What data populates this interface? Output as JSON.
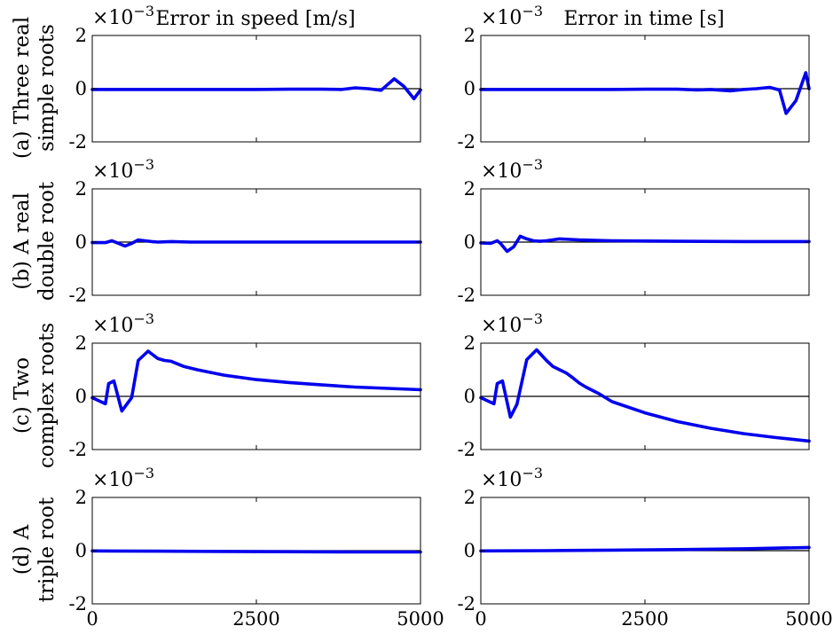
{
  "chart_data": {
    "type": "line",
    "column_titles": [
      "Error in speed [m/s]",
      "Error in time [s]"
    ],
    "row_labels": [
      [
        "(a) Three real",
        "simple roots"
      ],
      [
        "(b) A real",
        "double root"
      ],
      [
        "(c) Two",
        "complex roots"
      ],
      [
        "(d) A",
        "triple root"
      ]
    ],
    "y_multiplier": "×10",
    "y_exponent": "−3",
    "xlim": [
      0,
      5000
    ],
    "ylim": [
      -2,
      2
    ],
    "x_ticks": [
      "0",
      "2500",
      "5000"
    ],
    "y_ticks": [
      "2",
      "0",
      "-2"
    ],
    "panels": [
      {
        "row": 0,
        "col": 0,
        "x": [
          0,
          500,
          1000,
          1500,
          2000,
          2500,
          3000,
          3500,
          3800,
          4000,
          4200,
          4400,
          4600,
          4750,
          4900,
          5000
        ],
        "y": [
          -0.03,
          -0.03,
          -0.03,
          -0.03,
          -0.03,
          -0.03,
          -0.02,
          -0.02,
          -0.03,
          0.03,
          0.0,
          -0.06,
          0.37,
          0.08,
          -0.38,
          -0.05
        ]
      },
      {
        "row": 0,
        "col": 1,
        "x": [
          0,
          500,
          1000,
          1500,
          2000,
          2500,
          3000,
          3300,
          3500,
          3800,
          4000,
          4200,
          4400,
          4550,
          4650,
          4800,
          4950,
          5000
        ],
        "y": [
          -0.03,
          -0.03,
          -0.03,
          -0.03,
          -0.03,
          -0.02,
          -0.02,
          -0.05,
          -0.03,
          -0.08,
          -0.03,
          0.0,
          0.05,
          -0.05,
          -0.93,
          -0.45,
          0.6,
          0.0
        ]
      },
      {
        "row": 1,
        "col": 0,
        "x": [
          0,
          200,
          300,
          400,
          500,
          600,
          700,
          900,
          1000,
          1200,
          1500,
          2000,
          2500,
          3000,
          4000,
          5000
        ],
        "y": [
          -0.02,
          -0.02,
          0.05,
          -0.05,
          -0.15,
          -0.05,
          0.08,
          0.02,
          0.0,
          0.02,
          0.0,
          0.0,
          0.0,
          0.0,
          0.0,
          0.0
        ]
      },
      {
        "row": 1,
        "col": 1,
        "x": [
          0,
          150,
          250,
          300,
          400,
          500,
          600,
          700,
          800,
          900,
          1000,
          1200,
          1500,
          1800,
          2000,
          2500,
          3000,
          4000,
          5000
        ],
        "y": [
          -0.03,
          -0.05,
          0.05,
          -0.05,
          -0.35,
          -0.18,
          0.22,
          0.12,
          0.05,
          0.03,
          0.05,
          0.12,
          0.08,
          0.06,
          0.05,
          0.04,
          0.03,
          0.02,
          0.02
        ]
      },
      {
        "row": 2,
        "col": 0,
        "x": [
          0,
          200,
          250,
          330,
          450,
          600,
          700,
          850,
          1000,
          1100,
          1200,
          1400,
          1600,
          1800,
          2000,
          2500,
          3000,
          3500,
          4000,
          4500,
          5000
        ],
        "y": [
          -0.05,
          -0.28,
          0.48,
          0.58,
          -0.55,
          -0.05,
          1.35,
          1.7,
          1.42,
          1.35,
          1.32,
          1.12,
          1.0,
          0.9,
          0.8,
          0.63,
          0.52,
          0.43,
          0.35,
          0.3,
          0.25
        ]
      },
      {
        "row": 2,
        "col": 1,
        "x": [
          0,
          200,
          250,
          330,
          450,
          550,
          700,
          850,
          1000,
          1100,
          1200,
          1300,
          1400,
          1500,
          1600,
          1800,
          2000,
          2500,
          3000,
          3500,
          4000,
          4500,
          5000
        ],
        "y": [
          -0.05,
          -0.28,
          0.48,
          0.58,
          -0.78,
          -0.3,
          1.38,
          1.75,
          1.35,
          1.12,
          1.0,
          0.88,
          0.7,
          0.5,
          0.35,
          0.1,
          -0.2,
          -0.62,
          -0.95,
          -1.2,
          -1.4,
          -1.55,
          -1.68
        ]
      },
      {
        "row": 3,
        "col": 0,
        "x": [
          0,
          1000,
          2000,
          3000,
          4000,
          5000
        ],
        "y": [
          -0.01,
          -0.02,
          -0.03,
          -0.04,
          -0.05,
          -0.05
        ]
      },
      {
        "row": 3,
        "col": 1,
        "x": [
          0,
          1000,
          2000,
          3000,
          4000,
          5000
        ],
        "y": [
          -0.01,
          0.0,
          0.02,
          0.04,
          0.07,
          0.12
        ]
      }
    ]
  }
}
